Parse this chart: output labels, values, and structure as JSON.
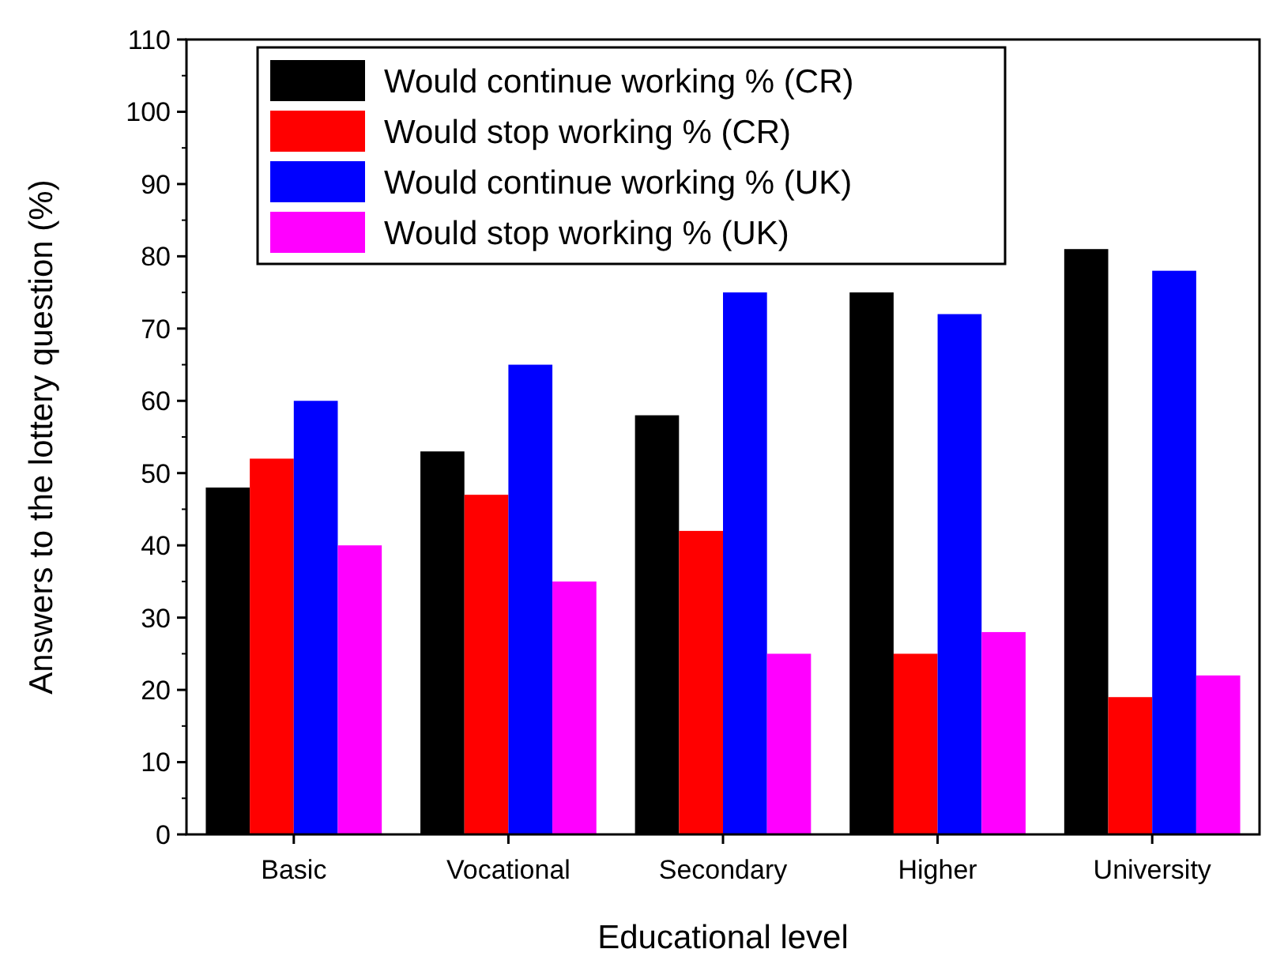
{
  "chart_data": {
    "type": "bar",
    "xlabel": "Educational level",
    "ylabel": "Answers to the lottery question (%)",
    "categories": [
      "Basic",
      "Vocational",
      "Secondary",
      "Higher",
      "University"
    ],
    "series": [
      {
        "name": "Would continue working % (CR)",
        "color": "#000000",
        "values": [
          48,
          53,
          58,
          75,
          81
        ]
      },
      {
        "name": "Would stop working % (CR)",
        "color": "#ff0000",
        "values": [
          52,
          47,
          42,
          25,
          19
        ]
      },
      {
        "name": "Would continue working % (UK)",
        "color": "#0000ff",
        "values": [
          60,
          65,
          75,
          72,
          78
        ]
      },
      {
        "name": "Would stop working % (UK)",
        "color": "#ff00ff",
        "values": [
          40,
          35,
          25,
          28,
          22
        ]
      }
    ],
    "ylim": [
      0,
      110
    ],
    "yticks": [
      0,
      10,
      20,
      30,
      40,
      50,
      60,
      70,
      80,
      90,
      100,
      110
    ],
    "legend": "top left",
    "grid": false
  }
}
